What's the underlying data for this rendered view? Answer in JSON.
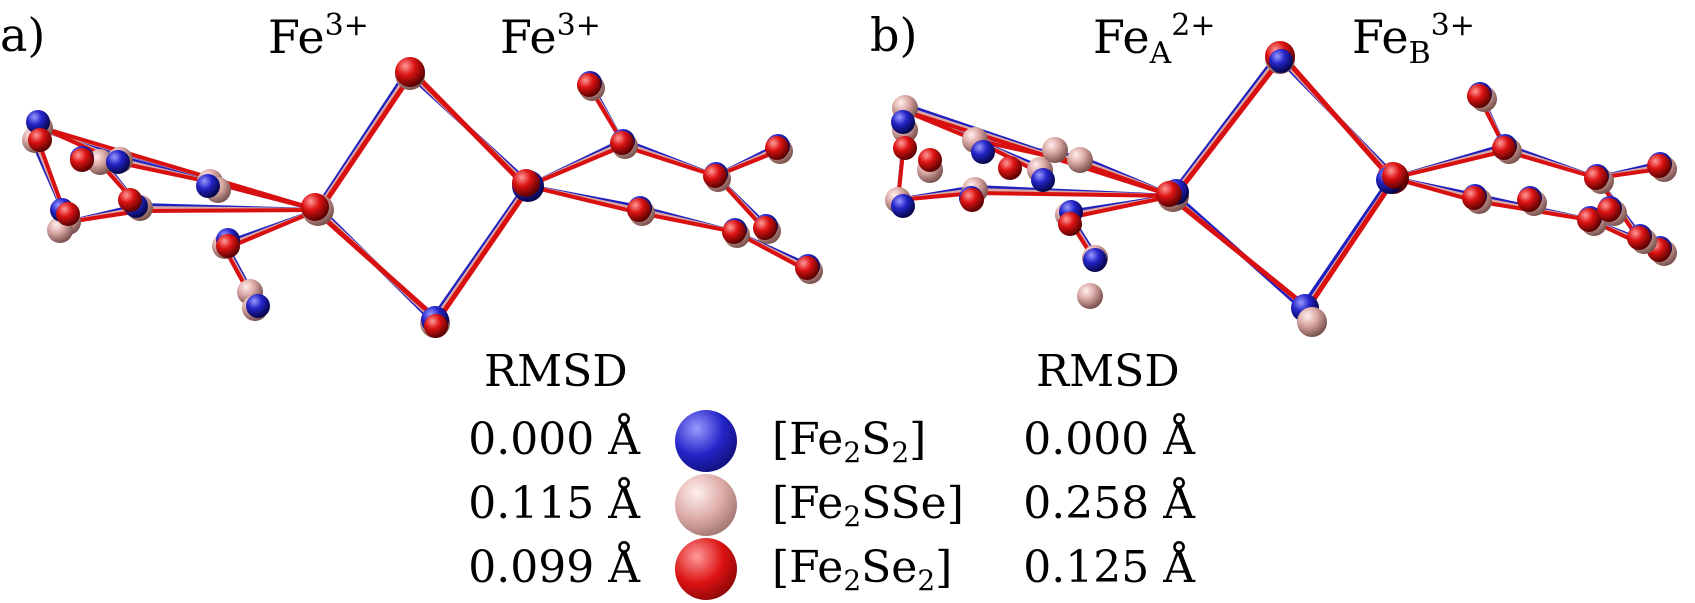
{
  "panels": [
    {
      "tag": "a)",
      "left_ion": {
        "base": "Fe",
        "sub": "",
        "sup": "3+"
      },
      "right_ion": {
        "base": "Fe",
        "sub": "",
        "sup": "3+"
      },
      "rmsd_header": "RMSD",
      "rmsd_values": [
        "0.000 Å",
        "0.115 Å",
        "0.099 Å"
      ]
    },
    {
      "tag": "b)",
      "left_ion": {
        "base": "Fe",
        "sub": "A",
        "sup": "2+"
      },
      "right_ion": {
        "base": "Fe",
        "sub": "B",
        "sup": "3+"
      },
      "rmsd_header": "RMSD",
      "rmsd_values": [
        "0.000 Å",
        "0.258 Å",
        "0.125 Å"
      ]
    }
  ],
  "legend": [
    {
      "name": "[Fe2S2]",
      "pre": "[Fe",
      "s1": "2",
      "mid": "S",
      "s2": "2",
      "post": "]",
      "color": "#2020c0",
      "light": "#8a8af5",
      "dark": "#08085a"
    },
    {
      "name": "[Fe2SSe]",
      "pre": "[Fe",
      "s1": "2",
      "mid": "SSe",
      "s2": "",
      "post": "]",
      "color": "#d9a8a4",
      "light": "#fbe8e6",
      "dark": "#8c5e5a"
    },
    {
      "name": "[Fe2Se2]",
      "pre": "[Fe",
      "s1": "2",
      "mid": "Se",
      "s2": "2",
      "post": "]",
      "color": "#d81010",
      "light": "#ff8a8a",
      "dark": "#6a0404"
    }
  ],
  "icons": {
    "atom": "atom-sphere-icon",
    "bond": "bond-stick-icon"
  }
}
